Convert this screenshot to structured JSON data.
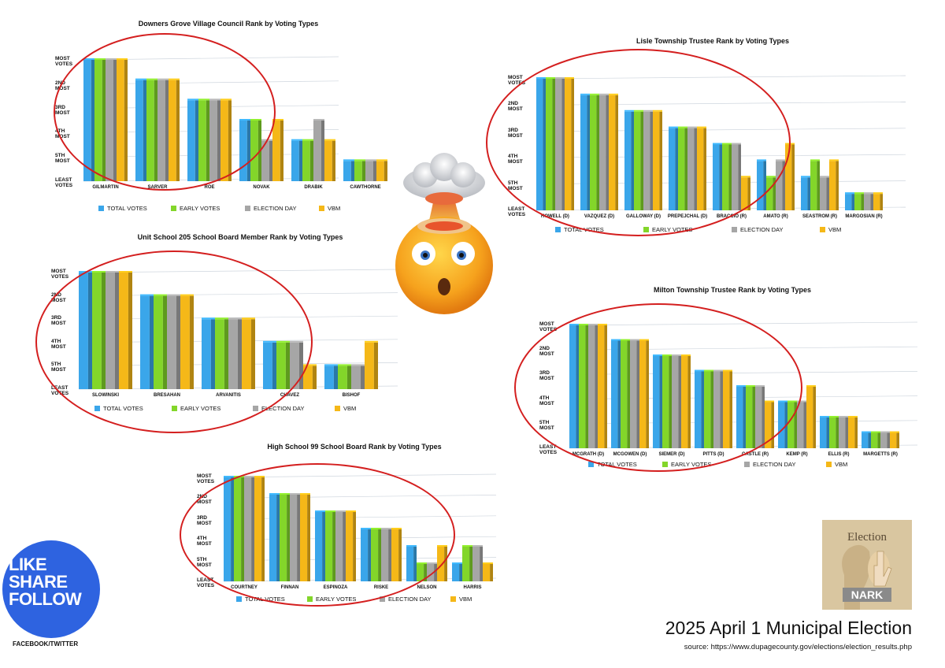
{
  "legend": {
    "total_label": "TOTAL VOTES",
    "early_label": "EARLY VOTES",
    "eday_label": "ELECTION DAY",
    "vbm_label": "VBM"
  },
  "colors": {
    "total": "#3aa6ea",
    "early": "#83d62a",
    "eday": "#a6a6a6",
    "vbm": "#f5b818",
    "ring": "#d41f1f",
    "badge": "#2e63e0"
  },
  "chart_data": [
    {
      "id": "downers",
      "type": "bar",
      "title": "Downers Grove Village Council Rank by Voting Types",
      "y_levels": [
        "MOST\nVOTES",
        "2ND\nMOST",
        "3RD\nMOST",
        "4TH\nMOST",
        "5TH\nMOST",
        "LEAST\nVOTES"
      ],
      "categories": [
        "GILMARTIN",
        "SARVER",
        "ROE",
        "NOVAK",
        "DRABIK",
        "CAWTHORNE"
      ],
      "series": [
        {
          "name": "TOTAL VOTES",
          "values": [
            6,
            5,
            4,
            3,
            2,
            1
          ]
        },
        {
          "name": "EARLY VOTES",
          "values": [
            6,
            5,
            4,
            3,
            2,
            1
          ]
        },
        {
          "name": "ELECTION DAY",
          "values": [
            6,
            5,
            4,
            2,
            3,
            1
          ]
        },
        {
          "name": "VBM",
          "values": [
            6,
            5,
            4,
            3,
            2,
            1
          ]
        }
      ]
    },
    {
      "id": "lisle",
      "type": "bar",
      "title": "Lisle Township Trustee Rank by Voting Types",
      "y_levels": [
        "MOST\nVOTES",
        "2ND\nMOST",
        "3RD\nMOST",
        "4TH\nMOST",
        "5TH\nMOST",
        "LEAST\nVOTES"
      ],
      "categories": [
        "HOWELL (D)",
        "VAZQUEZ (D)",
        "GALLOWAY (D)",
        "PREPEJCHAL (D)",
        "BRACCIO (R)",
        "AMATO (R)",
        "SEASTROM (R)",
        "MARGOSIAN (R)"
      ],
      "series": [
        {
          "name": "TOTAL VOTES",
          "values": [
            8,
            7,
            6,
            5,
            4,
            3,
            2,
            1
          ]
        },
        {
          "name": "EARLY VOTES",
          "values": [
            8,
            7,
            6,
            5,
            4,
            2,
            3,
            1
          ]
        },
        {
          "name": "ELECTION DAY",
          "values": [
            8,
            7,
            6,
            5,
            4,
            3,
            2,
            1
          ]
        },
        {
          "name": "VBM",
          "values": [
            8,
            7,
            6,
            5,
            2,
            4,
            3,
            1
          ]
        }
      ]
    },
    {
      "id": "unit205",
      "type": "bar",
      "title": "Unit School 205 School Board Member Rank by Voting Types",
      "y_levels": [
        "MOST\nVOTES",
        "2ND\nMOST",
        "3RD\nMOST",
        "4TH\nMOST",
        "5TH\nMOST",
        "LEAST\nVOTES"
      ],
      "categories": [
        "SLOWINSKI",
        "BRESAHAN",
        "ARVANITIS",
        "CHAVEZ",
        "BISHOF"
      ],
      "series": [
        {
          "name": "TOTAL VOTES",
          "values": [
            5,
            4,
            3,
            2,
            1
          ]
        },
        {
          "name": "EARLY VOTES",
          "values": [
            5,
            4,
            3,
            2,
            1
          ]
        },
        {
          "name": "ELECTION DAY",
          "values": [
            5,
            4,
            3,
            2,
            1
          ]
        },
        {
          "name": "VBM",
          "values": [
            5,
            4,
            3,
            1,
            2
          ]
        }
      ]
    },
    {
      "id": "milton",
      "type": "bar",
      "title": "Milton Township Trustee Rank by Voting Types",
      "y_levels": [
        "MOST\nVOTES",
        "2ND\nMOST",
        "3RD\nMOST",
        "4TH\nMOST",
        "5TH\nMOST",
        "LEAST\nVOTES"
      ],
      "categories": [
        "MCGRATH (D)",
        "MCGOWEN (D)",
        "SIEMER (D)",
        "PITTS (D)",
        "CASTLE (R)",
        "KEMP (R)",
        "ELLIS (R)",
        "MARGETTS (R)"
      ],
      "series": [
        {
          "name": "TOTAL VOTES",
          "values": [
            8,
            7,
            6,
            5,
            4,
            3,
            2,
            1
          ]
        },
        {
          "name": "EARLY VOTES",
          "values": [
            8,
            7,
            6,
            5,
            4,
            3,
            2,
            1
          ]
        },
        {
          "name": "ELECTION DAY",
          "values": [
            8,
            7,
            6,
            5,
            4,
            3,
            2,
            1
          ]
        },
        {
          "name": "VBM",
          "values": [
            8,
            7,
            6,
            5,
            3,
            4,
            2,
            1
          ]
        }
      ]
    },
    {
      "id": "hs99",
      "type": "bar",
      "title": "High School 99 School Board Rank by Voting Types",
      "y_levels": [
        "MOST\nVOTES",
        "2ND\nMOST",
        "3RD\nMOST",
        "4TH\nMOST",
        "5TH\nMOST",
        "LEAST\nVOTES"
      ],
      "categories": [
        "COURTNEY",
        "FINNAN",
        "ESPINOZA",
        "RISKE",
        "NELSON",
        "HARRIS"
      ],
      "series": [
        {
          "name": "TOTAL VOTES",
          "values": [
            6,
            5,
            4,
            3,
            2,
            1
          ]
        },
        {
          "name": "EARLY VOTES",
          "values": [
            6,
            5,
            4,
            3,
            1,
            2
          ]
        },
        {
          "name": "ELECTION DAY",
          "values": [
            6,
            5,
            4,
            3,
            1,
            2
          ]
        },
        {
          "name": "VBM",
          "values": [
            6,
            5,
            4,
            3,
            2,
            1
          ]
        }
      ]
    }
  ],
  "social": {
    "line1": "LIKE",
    "line2": "SHARE",
    "line3": "FOLLOW",
    "footer": "FACEBOOK/TWITTER"
  },
  "logo": {
    "top_text": "Election",
    "bottom_text": "NARK"
  },
  "footer": {
    "title": "2025 April 1 Municipal Election",
    "source": "source: https://www.dupagecounty.gov/elections/election_results.php"
  }
}
